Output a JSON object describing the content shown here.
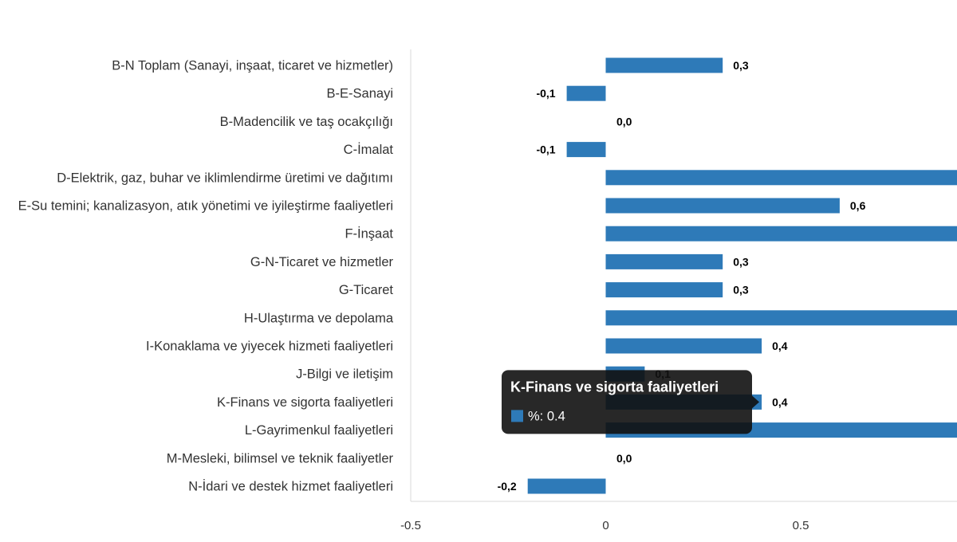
{
  "chart_data": {
    "type": "bar",
    "orientation": "horizontal",
    "categories": [
      "B-N Toplam (Sanayi, inşaat, ticaret ve hizmetler)",
      "B-E-Sanayi",
      "B-Madencilik ve taş ocakçılığı",
      "C-İmalat",
      "D-Elektrik, gaz, buhar ve iklimlendirme üretimi ve dağıtımı",
      "E-Su temini; kanalizasyon, atık yönetimi ve iyileştirme faaliyetleri",
      "F-İnşaat",
      "G-N-Ticaret ve hizmetler",
      "G-Ticaret",
      "H-Ulaştırma ve depolama",
      "I-Konaklama ve yiyecek hizmeti faaliyetleri",
      "J-Bilgi ve iletişim",
      "K-Finans ve sigorta faaliyetleri",
      "L-Gayrimenkul faaliyetleri",
      "M-Mesleki, bilimsel ve teknik faaliyetler",
      "N-İdari ve destek hizmet faaliyetleri"
    ],
    "values": [
      0.3,
      -0.1,
      0.0,
      -0.1,
      1.0,
      0.6,
      1.0,
      0.3,
      0.3,
      1.0,
      0.4,
      0.1,
      0.4,
      1.0,
      0.0,
      -0.2
    ],
    "data_labels": [
      "0,3",
      "-0,1",
      "0,0",
      "-0,1",
      "",
      "0,6",
      "",
      "0,3",
      "0,3",
      "",
      "0,4",
      "0,1",
      "0,4",
      "",
      "0,0",
      "-0,2"
    ],
    "x_ticks": [
      -0.5,
      0,
      0.5
    ],
    "x_tick_labels": [
      "-0.5",
      "0",
      "0.5"
    ],
    "xlim": [
      -0.5,
      0.9
    ],
    "bar_color": "#2e7ab8",
    "grid": false,
    "legend": "none"
  },
  "tooltip": {
    "title": "K-Finans ve sigorta faaliyetleri",
    "series_label": "%: 0.4",
    "swatch_color": "#2e7ab8",
    "anchor_category_index": 12
  }
}
